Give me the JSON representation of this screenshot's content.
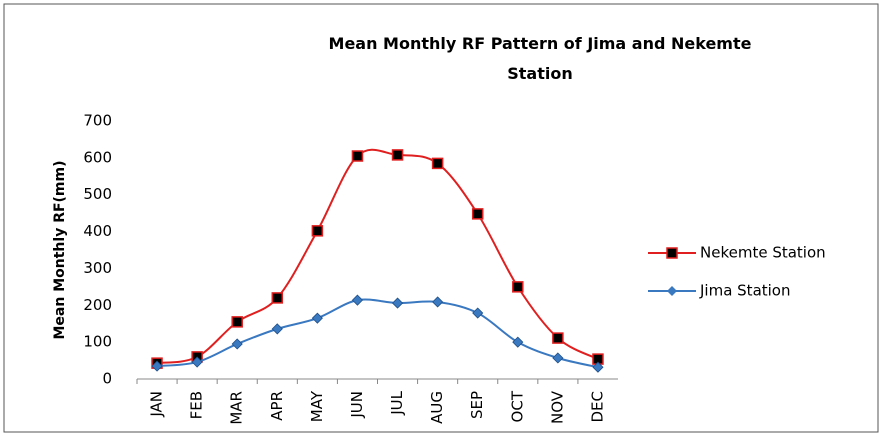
{
  "chart_data": {
    "type": "line",
    "title": "Mean Monthly RF Pattern of Jima and Nekemte Station",
    "y_label": "Mean Monthly RF(mm)",
    "categories": [
      "JAN",
      "FEB",
      "MAR",
      "APR",
      "MAY",
      "JUN",
      "JUL",
      "AUG",
      "SEP",
      "OCT",
      "NOV",
      "DEC"
    ],
    "series": [
      {
        "name": "Nekemte Station",
        "color": "#e02020",
        "marker": "square",
        "values": [
          43,
          60,
          155,
          220,
          402,
          605,
          608,
          585,
          448,
          250,
          111,
          54
        ]
      },
      {
        "name": "Jima Station",
        "color": "#3a78c0",
        "marker": "diamond",
        "values": [
          35,
          46,
          95,
          136,
          165,
          214,
          206,
          209,
          179,
          100,
          57,
          32
        ]
      }
    ],
    "ylim": [
      0,
      700
    ],
    "yticks": [
      0,
      100,
      200,
      300,
      400,
      500,
      600,
      700
    ],
    "grid": false,
    "smooth": true,
    "legend": "right"
  }
}
